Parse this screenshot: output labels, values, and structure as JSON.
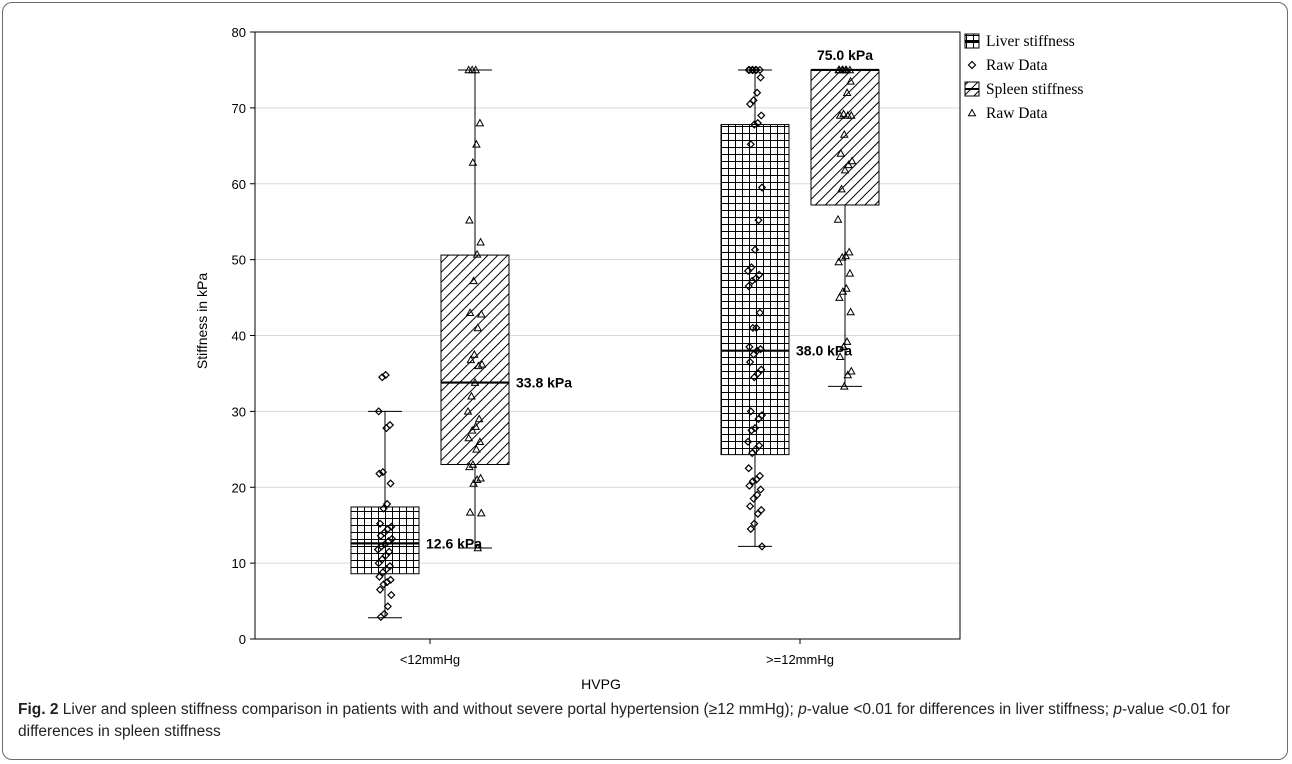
{
  "chart_data": {
    "type": "box",
    "xlabel": "HVPG",
    "ylabel": "Stiffness in kPa",
    "ylim": [
      0,
      80
    ],
    "yticks": [
      0,
      10,
      20,
      30,
      40,
      50,
      60,
      70,
      80
    ],
    "grid": true,
    "legend_position": "right",
    "categories": [
      "<12mmHg",
      ">=12mmHg"
    ],
    "legend": [
      {
        "label": "Liver stiffness",
        "symbol": "box-grid"
      },
      {
        "label": "Raw Data",
        "symbol": "diamond"
      },
      {
        "label": "Spleen stiffness",
        "symbol": "box-hatch"
      },
      {
        "label": "Raw Data",
        "symbol": "triangle"
      }
    ],
    "series": [
      {
        "name": "Liver stiffness",
        "boxes": [
          {
            "category": "<12mmHg",
            "min": 2.8,
            "q1": 8.6,
            "median": 12.6,
            "q3": 17.4,
            "max": 30.0,
            "label": "12.6 kPa"
          },
          {
            "category": ">=12mmHg",
            "min": 12.2,
            "q1": 24.3,
            "median": 38.0,
            "q3": 67.8,
            "max": 75.0,
            "label": "38.0 kPa"
          }
        ],
        "raw": [
          {
            "category": "<12mmHg",
            "values": [
              34.8,
              34.5,
              30.0,
              28.2,
              27.8,
              22.0,
              21.8,
              20.5,
              17.8,
              17.2,
              15.2,
              14.8,
              14.5,
              14.0,
              13.6,
              13.2,
              12.9,
              12.5,
              12.2,
              11.8,
              11.5,
              11.0,
              10.5,
              10.0,
              9.6,
              9.2,
              8.8,
              8.2,
              7.8,
              7.5,
              7.2,
              6.5,
              5.8,
              4.3,
              3.3,
              2.9
            ]
          },
          {
            "category": ">=12mmHg",
            "values": [
              75.0,
              75.0,
              75.0,
              75.0,
              75.0,
              75.0,
              75.0,
              74.0,
              72.0,
              71.0,
              70.5,
              69.0,
              68.0,
              67.8,
              65.2,
              59.5,
              55.2,
              51.3,
              49.0,
              48.5,
              48.0,
              47.5,
              47.2,
              46.5,
              43.0,
              41.0,
              41.0,
              38.5,
              38.2,
              38.0,
              37.5,
              36.5,
              35.5,
              35.0,
              34.5,
              30.0,
              29.5,
              29.0,
              27.8,
              27.5,
              26.0,
              25.5,
              25.0,
              24.5,
              22.5,
              21.5,
              21.0,
              20.8,
              20.2,
              19.7,
              19.0,
              18.5,
              17.5,
              17.0,
              16.5,
              15.2,
              14.5,
              12.2
            ]
          }
        ]
      },
      {
        "name": "Spleen stiffness",
        "boxes": [
          {
            "category": "<12mmHg",
            "min": 12.0,
            "q1": 23.0,
            "median": 33.8,
            "q3": 50.6,
            "max": 75.0,
            "label": "33.8 kPa"
          },
          {
            "category": ">=12mmHg",
            "min": 33.3,
            "q1": 57.2,
            "median": 75.0,
            "q3": 75.0,
            "max": 75.0,
            "label": "75.0 kPa"
          }
        ],
        "raw": [
          {
            "category": "<12mmHg",
            "values": [
              75.0,
              75.0,
              75.0,
              68.0,
              65.2,
              62.8,
              55.2,
              52.3,
              50.7,
              47.2,
              43.0,
              42.8,
              41.0,
              37.5,
              36.8,
              36.2,
              36.0,
              33.8,
              32.0,
              30.0,
              29.0,
              28.0,
              27.5,
              26.5,
              26.0,
              25.0,
              23.0,
              22.7,
              21.2,
              21.0,
              20.5,
              16.7,
              16.6,
              12.0
            ]
          },
          {
            "category": ">=12mmHg",
            "values": [
              75.0,
              75.0,
              75.0,
              75.0,
              75.0,
              75.0,
              75.0,
              73.5,
              72.0,
              69.2,
              69.0,
              69.0,
              69.0,
              66.5,
              64.0,
              63.0,
              62.5,
              61.8,
              59.3,
              55.3,
              51.0,
              50.5,
              50.3,
              49.7,
              48.2,
              46.2,
              45.8,
              45.0,
              43.1,
              39.2,
              38.5,
              37.2,
              35.3,
              34.8,
              33.3
            ]
          }
        ]
      }
    ]
  },
  "caption": {
    "fig_label": "Fig. 2",
    "part1": " Liver and spleen stiffness comparison in patients with and without severe portal hypertension (≥12 mmHg); ",
    "p1": "p",
    "part2": "-value <0.01 for differences in liver stiffness; ",
    "p2": "p",
    "part3": "-value <0.01 for differences in spleen stiffness"
  }
}
